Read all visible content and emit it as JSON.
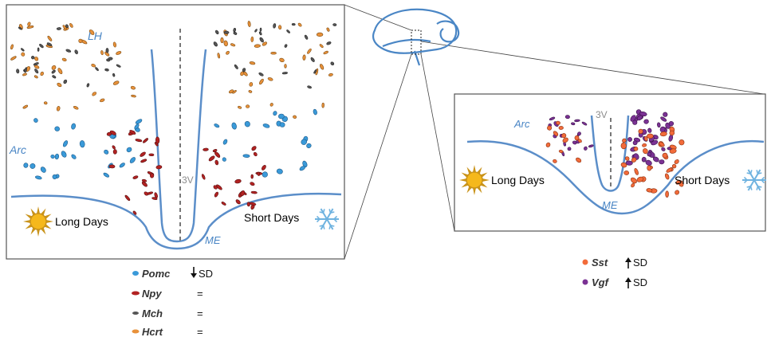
{
  "left_panel": {
    "labels": {
      "lh": "LH",
      "arc": "Arc",
      "third_ventricle": "3V",
      "median_eminence": "ME"
    },
    "long_days": "Long Days",
    "short_days": "Short Days"
  },
  "right_panel": {
    "labels": {
      "arc": "Arc",
      "third_ventricle": "3V",
      "median_eminence": "ME"
    },
    "long_days": "Long Days",
    "short_days": "Short Days"
  },
  "legend_left": [
    {
      "gene": "Pomc",
      "effect": "SD",
      "arrow": "down",
      "color": "#3a9ad9"
    },
    {
      "gene": "Npy",
      "effect": "=",
      "arrow": "",
      "color": "#b22222"
    },
    {
      "gene": "Mch",
      "effect": "=",
      "arrow": "",
      "color": "#555555"
    },
    {
      "gene": "Hcrt",
      "effect": "=",
      "arrow": "",
      "color": "#e8913a"
    }
  ],
  "legend_right": [
    {
      "gene": "Sst",
      "effect": "SD",
      "arrow": "up",
      "color": "#f26b3a"
    },
    {
      "gene": "Vgf",
      "effect": "SD",
      "arrow": "up",
      "color": "#7b3294"
    }
  ],
  "colors": {
    "outline": "#5b8ec9",
    "pomc": "#3a9ad9",
    "npy": "#b22222",
    "mch": "#555555",
    "hcrt": "#e8913a",
    "sst": "#f26b3a",
    "vgf": "#7b3294",
    "sun": "#f5b81c",
    "snowflake": "#6fb3e0"
  },
  "icons": [
    "sun-icon",
    "snowflake-icon",
    "brain-icon"
  ]
}
